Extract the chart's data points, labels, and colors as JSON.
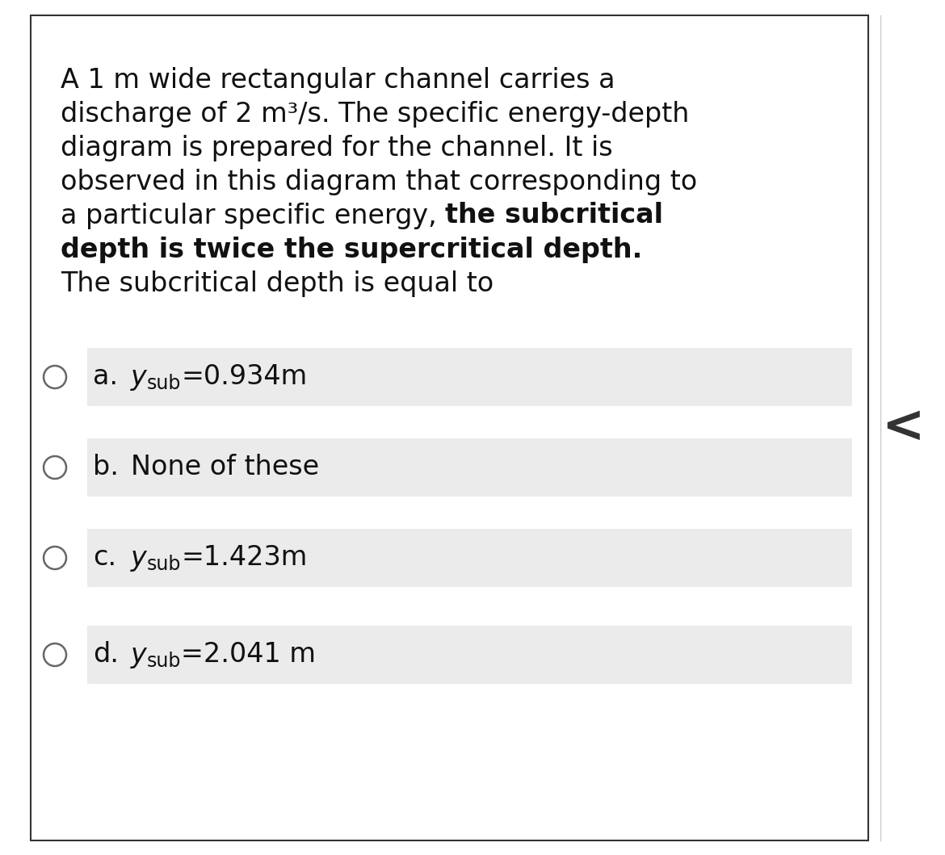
{
  "background_color": "#ffffff",
  "border_color": "#333333",
  "fig_width": 11.7,
  "fig_height": 10.59,
  "dpi": 100,
  "question_font_size": 24,
  "option_font_size": 24,
  "option_bg_color": "#ebebeb",
  "text_color": "#111111",
  "circle_color": "#666666",
  "chevron_color": "#333333",
  "line_configs": [
    {
      "segments": [
        {
          "text": "A 1 m wide rectangular channel carries a",
          "bold": false
        }
      ]
    },
    {
      "segments": [
        {
          "text": "discharge of 2 m³/s. The specific energy-depth",
          "bold": false
        }
      ]
    },
    {
      "segments": [
        {
          "text": "diagram is prepared for the channel. It is",
          "bold": false
        }
      ]
    },
    {
      "segments": [
        {
          "text": "observed in this diagram that corresponding to",
          "bold": false
        }
      ]
    },
    {
      "segments": [
        {
          "text": "a particular specific energy, ",
          "bold": false
        },
        {
          "text": "the subcritical",
          "bold": true
        }
      ]
    },
    {
      "segments": [
        {
          "text": "depth is twice the supercritical depth.",
          "bold": true
        }
      ]
    },
    {
      "segments": [
        {
          "text": "The subcritical depth is equal to",
          "bold": false
        }
      ]
    }
  ],
  "options": [
    {
      "label": "a.",
      "use_ysub": true,
      "value": "=0.934m"
    },
    {
      "label": "b.",
      "use_ysub": false,
      "text": "None of these"
    },
    {
      "label": "c.",
      "use_ysub": true,
      "value": "=1.423m"
    },
    {
      "label": "d.",
      "use_ysub": true,
      "value": "=2.041 m"
    }
  ]
}
